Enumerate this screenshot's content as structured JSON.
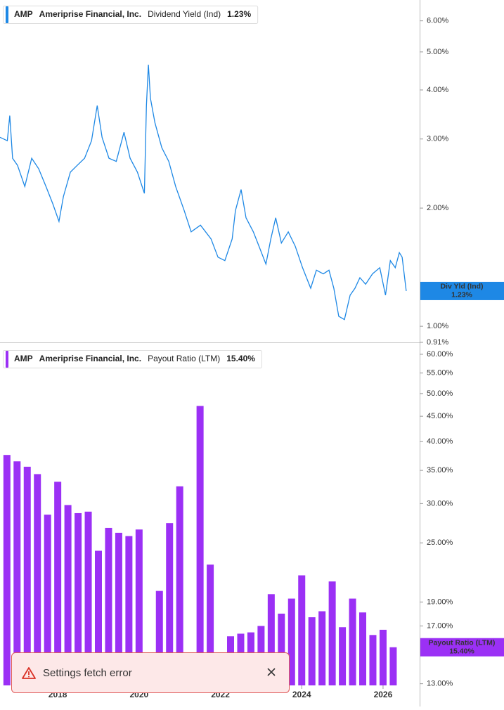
{
  "chart_data": [
    {
      "type": "line",
      "ticker": "AMP",
      "company": "Ameriprise Financial, Inc.",
      "metric": "Dividend Yield (Ind)",
      "legend_value": "1.23%",
      "end_label": {
        "name": "Div Yld (Ind)",
        "value": "1.23%"
      },
      "color": "#1e88e5",
      "log_scale": true,
      "x": [
        2016.58,
        2016.76,
        2016.82,
        2016.89,
        2017.01,
        2017.19,
        2017.36,
        2017.53,
        2017.71,
        2017.88,
        2018.03,
        2018.14,
        2018.31,
        2018.48,
        2018.66,
        2018.83,
        2018.97,
        2019.09,
        2019.26,
        2019.44,
        2019.63,
        2019.78,
        2019.96,
        2020.13,
        2020.18,
        2020.23,
        2020.28,
        2020.39,
        2020.56,
        2020.73,
        2020.9,
        2021.11,
        2021.28,
        2021.51,
        2021.77,
        2021.94,
        2022.11,
        2022.29,
        2022.37,
        2022.51,
        2022.63,
        2022.81,
        2022.98,
        2023.12,
        2023.24,
        2023.36,
        2023.5,
        2023.67,
        2023.84,
        2024.02,
        2024.22,
        2024.36,
        2024.53,
        2024.67,
        2024.79,
        2024.91,
        2025.05,
        2025.19,
        2025.31,
        2025.43,
        2025.57,
        2025.74,
        2025.92,
        2026.06,
        2026.18,
        2026.3,
        2026.4,
        2026.47,
        2026.57
      ],
      "values": [
        3.03,
        2.97,
        3.44,
        2.68,
        2.57,
        2.27,
        2.68,
        2.52,
        2.27,
        2.05,
        1.85,
        2.14,
        2.47,
        2.57,
        2.68,
        2.97,
        3.65,
        3.03,
        2.68,
        2.63,
        3.12,
        2.68,
        2.47,
        2.18,
        3.65,
        4.64,
        3.81,
        3.3,
        2.85,
        2.63,
        2.27,
        1.97,
        1.74,
        1.81,
        1.67,
        1.5,
        1.47,
        1.67,
        1.97,
        2.23,
        1.89,
        1.74,
        1.57,
        1.44,
        1.67,
        1.89,
        1.63,
        1.74,
        1.6,
        1.41,
        1.25,
        1.39,
        1.36,
        1.39,
        1.25,
        1.06,
        1.04,
        1.2,
        1.25,
        1.33,
        1.28,
        1.36,
        1.41,
        1.2,
        1.47,
        1.41,
        1.54,
        1.5,
        1.23
      ],
      "xlim": [
        2016.58,
        2026.9
      ],
      "ylim": [
        0.91,
        6.78
      ],
      "yticks": [
        {
          "value": 6,
          "label": "6.00%"
        },
        {
          "value": 5,
          "label": "5.00%"
        },
        {
          "value": 4,
          "label": "4.00%"
        },
        {
          "value": 3,
          "label": "3.00%"
        },
        {
          "value": 2,
          "label": "2.00%"
        },
        {
          "value": 1,
          "label": "1.00%"
        },
        {
          "value": 0.91,
          "label": "0.91%"
        }
      ]
    },
    {
      "type": "bar",
      "ticker": "AMP",
      "company": "Ameriprise Financial, Inc.",
      "metric": "Payout Ratio (LTM)",
      "legend_value": "15.40%",
      "end_label": {
        "name": "Payout Ratio (LTM)",
        "value": "15.40%"
      },
      "color": "#9b30f5",
      "log_scale": true,
      "x": [
        2016.75,
        2017,
        2017.25,
        2017.5,
        2017.75,
        2018,
        2018.25,
        2018.5,
        2018.75,
        2019,
        2019.25,
        2019.5,
        2019.75,
        2020,
        2020.25,
        2020.5,
        2020.75,
        2021,
        2021.25,
        2021.5,
        2021.75,
        2022,
        2022.25,
        2022.5,
        2022.75,
        2023,
        2023.25,
        2023.5,
        2023.75,
        2024,
        2024.25,
        2024.5,
        2024.75,
        2025,
        2025.25,
        2025.5,
        2025.75,
        2026,
        2026.25
      ],
      "values": [
        37.6,
        36.5,
        35.6,
        34.4,
        28.5,
        33.2,
        29.8,
        28.7,
        28.9,
        24.1,
        26.8,
        26.2,
        25.8,
        26.6,
        null,
        20.0,
        27.4,
        32.5,
        null,
        47.2,
        22.6,
        null,
        16.2,
        16.4,
        16.5,
        17.0,
        19.7,
        18.0,
        19.3,
        21.5,
        17.7,
        18.2,
        20.9,
        16.9,
        19.3,
        18.1,
        16.3,
        16.7,
        15.4
      ],
      "xlim": [
        2016.58,
        2026.9
      ],
      "ylim": [
        12.9,
        62.8
      ],
      "yticks": [
        {
          "value": 60,
          "label": "60.00%"
        },
        {
          "value": 55,
          "label": "55.00%"
        },
        {
          "value": 50,
          "label": "50.00%"
        },
        {
          "value": 45,
          "label": "45.00%"
        },
        {
          "value": 40,
          "label": "40.00%"
        },
        {
          "value": 35,
          "label": "35.00%"
        },
        {
          "value": 30,
          "label": "30.00%"
        },
        {
          "value": 25,
          "label": "25.00%"
        },
        {
          "value": 19,
          "label": "19.00%"
        },
        {
          "value": 17,
          "label": "17.00%"
        },
        {
          "value": 13,
          "label": "13.00%"
        }
      ],
      "xticks": [
        2018,
        2020,
        2022,
        2024,
        2026
      ]
    }
  ],
  "toast": {
    "message": "Settings fetch error"
  }
}
